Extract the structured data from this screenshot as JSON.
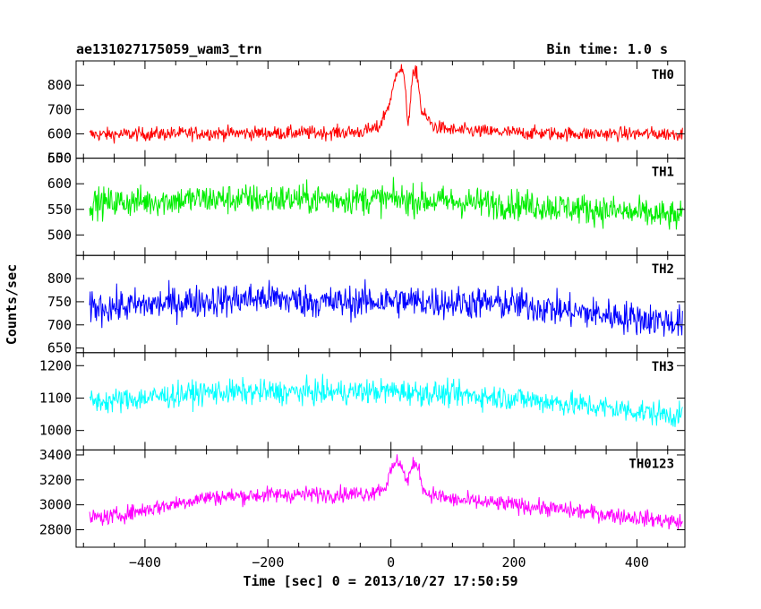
{
  "header": {
    "left_title": "ae131027175059_wam3_trn",
    "right_title": "Bin time: 1.0 s"
  },
  "axes": {
    "xlabel": "Time [sec] 0 = 2013/10/27 17:50:59",
    "ylabel": "Counts/sec"
  },
  "chart_data": {
    "type": "line",
    "x_range": [
      -512,
      478
    ],
    "x_ticks": [
      -400,
      -200,
      0,
      200,
      400
    ],
    "x_ticks_labels": [
      "−400",
      "−200",
      "0",
      "200",
      "400"
    ],
    "bin_time_s": 1.0,
    "panels": [
      {
        "name": "TH0",
        "color": "#ff0000",
        "ylim": [
          500,
          900
        ],
        "yticks": [
          500,
          600,
          700,
          800
        ],
        "baseline": 600,
        "noise": 24,
        "profile": [
          [
            -460,
            597
          ],
          [
            -300,
            603
          ],
          [
            -200,
            603
          ],
          [
            -100,
            605
          ],
          [
            -50,
            608
          ],
          [
            -20,
            625
          ],
          [
            0,
            740
          ],
          [
            10,
            870
          ],
          [
            20,
            860
          ],
          [
            28,
            640
          ],
          [
            35,
            830
          ],
          [
            42,
            860
          ],
          [
            50,
            690
          ],
          [
            70,
            630
          ],
          [
            100,
            615
          ],
          [
            200,
            605
          ],
          [
            300,
            600
          ],
          [
            470,
            600
          ]
        ]
      },
      {
        "name": "TH1",
        "color": "#00ee00",
        "ylim": [
          460,
          650
        ],
        "yticks": [
          500,
          550,
          600,
          650
        ],
        "baseline": 565,
        "noise": 25,
        "profile": [
          [
            -460,
            563
          ],
          [
            -300,
            570
          ],
          [
            -100,
            570
          ],
          [
            0,
            570
          ],
          [
            200,
            560
          ],
          [
            350,
            548
          ],
          [
            470,
            535
          ]
        ]
      },
      {
        "name": "TH2",
        "color": "#0000ff",
        "ylim": [
          640,
          850
        ],
        "yticks": [
          650,
          700,
          750,
          800
        ],
        "baseline": 750,
        "noise": 30,
        "profile": [
          [
            -460,
            738
          ],
          [
            -300,
            752
          ],
          [
            -200,
            758
          ],
          [
            -100,
            748
          ],
          [
            0,
            752
          ],
          [
            200,
            745
          ],
          [
            300,
            728
          ],
          [
            470,
            705
          ]
        ]
      },
      {
        "name": "TH3",
        "color": "#00ffff",
        "ylim": [
          940,
          1240
        ],
        "yticks": [
          1000,
          1100,
          1200
        ],
        "baseline": 1110,
        "noise": 32,
        "profile": [
          [
            -460,
            1090
          ],
          [
            -300,
            1118
          ],
          [
            -100,
            1118
          ],
          [
            0,
            1122
          ],
          [
            200,
            1100
          ],
          [
            350,
            1070
          ],
          [
            470,
            1045
          ]
        ]
      },
      {
        "name": "TH0123",
        "color": "#ff00ff",
        "ylim": [
          2660,
          3440
        ],
        "yticks": [
          2800,
          3000,
          3200,
          3400
        ],
        "baseline": 3000,
        "noise": 55,
        "profile": [
          [
            -460,
            2900
          ],
          [
            -300,
            3060
          ],
          [
            -200,
            3080
          ],
          [
            -100,
            3085
          ],
          [
            -40,
            3090
          ],
          [
            -10,
            3140
          ],
          [
            5,
            3320
          ],
          [
            15,
            3360
          ],
          [
            25,
            3180
          ],
          [
            35,
            3300
          ],
          [
            42,
            3340
          ],
          [
            55,
            3100
          ],
          [
            100,
            3040
          ],
          [
            200,
            3000
          ],
          [
            300,
            2950
          ],
          [
            470,
            2860
          ]
        ]
      }
    ]
  }
}
